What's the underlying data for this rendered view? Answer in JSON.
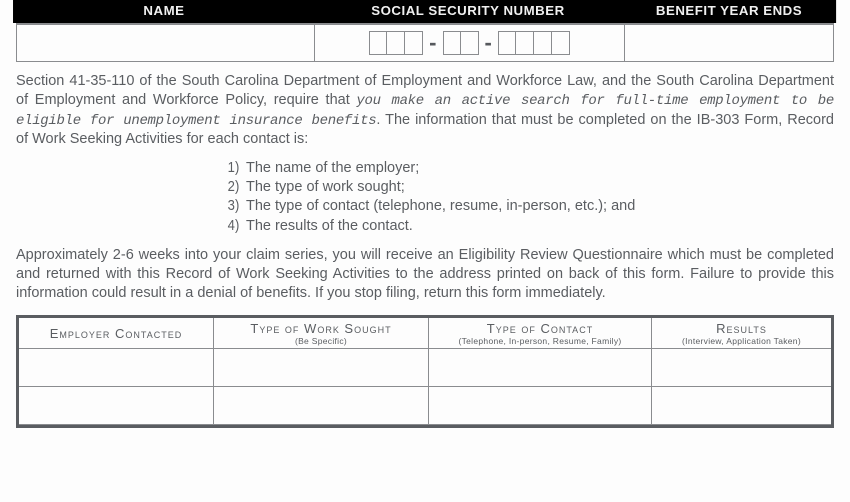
{
  "header": {
    "name": "NAME",
    "ssn": "SOCIAL SECURITY NUMBER",
    "bye": "BENEFIT YEAR ENDS"
  },
  "ssn_input": {
    "group_sizes": [
      3,
      2,
      4
    ],
    "dash": "-"
  },
  "para1": {
    "pre": "Section 41-35-110 of the South Carolina Department of Employment and Workforce Law, and the South Carolina Department of Employment and Workforce Policy, require that ",
    "italic": "you make an active search for full-time employment to be eligible for unemployment insurance benefits",
    "post": ". The information that must be completed on the IB-303 Form, Record of Work Seeking Activities for each contact is:"
  },
  "list": {
    "items": [
      {
        "n": "1)",
        "t": "The name of the employer;"
      },
      {
        "n": "2)",
        "t": "The type of work sought;"
      },
      {
        "n": "3)",
        "t": "The type of contact (telephone, resume, in-person, etc.); and"
      },
      {
        "n": "4)",
        "t": "The results of the contact."
      }
    ]
  },
  "para2": "Approximately 2-6 weeks into your claim series, you will receive an Eligibility Review Questionnaire which must be completed and returned with this Record of Work Seeking Activities to the address printed on back of this form. Failure to provide this information could result in a denial of benefits. If you stop filing, return this form immediately.",
  "activities": {
    "columns": [
      {
        "main": "Employer Contacted",
        "sub": ""
      },
      {
        "main": "Type of Work Sought",
        "sub": "(Be Specific)"
      },
      {
        "main": "Type of Contact",
        "sub": "(Telephone, In-person, Resume, Family)"
      },
      {
        "main": "Results",
        "sub": "(Interview, Application Taken)"
      }
    ],
    "blank_rows": 2
  },
  "colors": {
    "header_bg": "#000000",
    "header_fg": "#f0f0f0",
    "body_fg": "#56595d",
    "border": "#8a8c8f",
    "table_border": "#5a5d61",
    "page_bg": "#fdfdfd"
  }
}
